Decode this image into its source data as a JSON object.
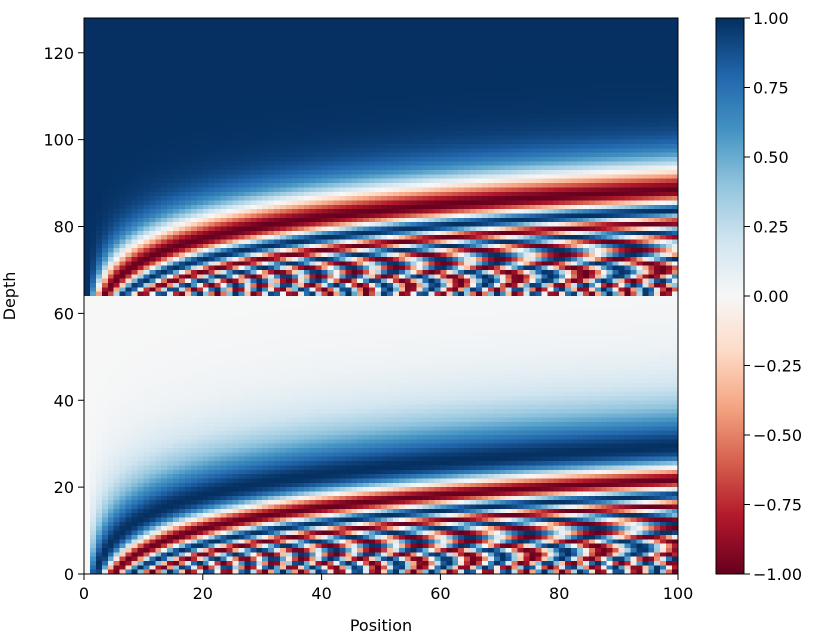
{
  "chart_data": {
    "type": "heatmap",
    "title": "",
    "xlabel": "Position",
    "ylabel": "Depth",
    "xlim": [
      0,
      100
    ],
    "ylim": [
      0,
      128
    ],
    "n_positions": 100,
    "d_model": 128,
    "encoding": "sinusoidal positional encoding: rows 0-63 sin(pos / 10000^(2i/64)), rows 64-127 cos(pos / 10000^(2i/64))",
    "xticks": [
      "0",
      "20",
      "40",
      "60",
      "80",
      "100"
    ],
    "yticks": [
      "0",
      "20",
      "40",
      "60",
      "80",
      "100",
      "120"
    ],
    "colormap": "RdBu",
    "vmin": -1.0,
    "vmax": 1.0,
    "colorbar_ticks": [
      "1.00",
      "0.75",
      "0.50",
      "0.25",
      "0.00",
      "−0.25",
      "−0.50",
      "−0.75",
      "−1.00"
    ],
    "colors": {
      "min": "#67001f",
      "mid": "#f7f7f7",
      "max": "#053061"
    }
  }
}
